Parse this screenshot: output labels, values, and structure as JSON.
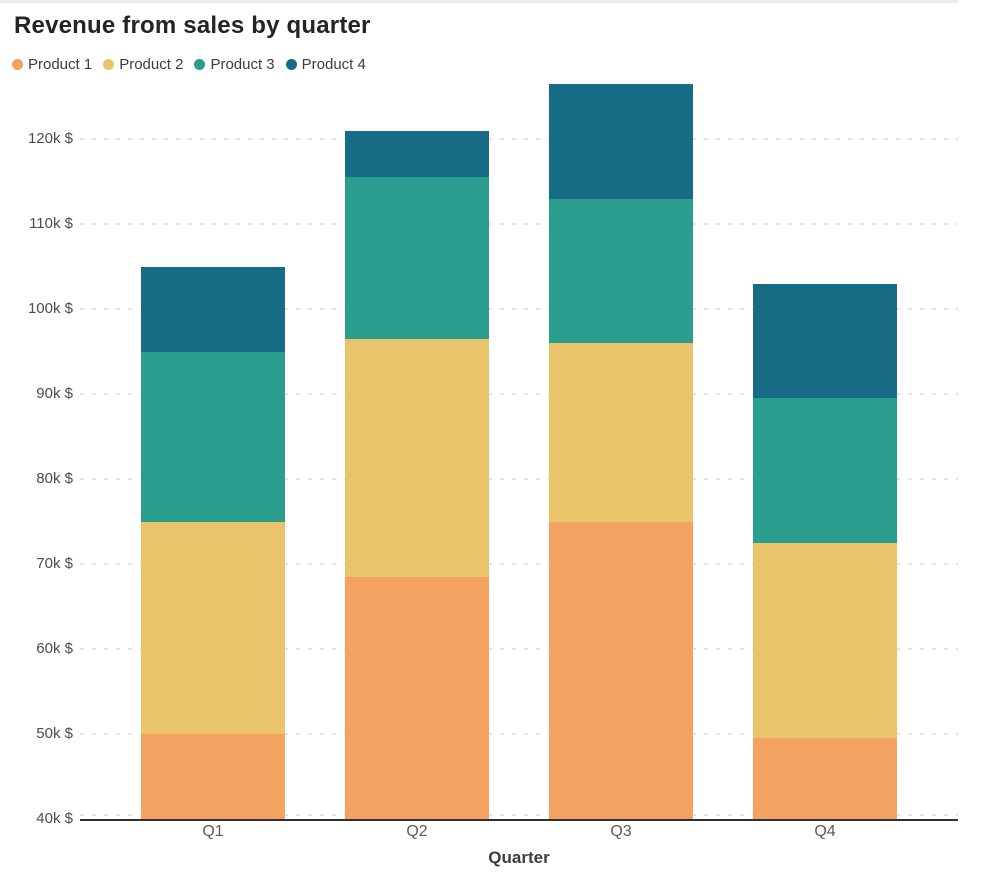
{
  "chart_data": {
    "type": "bar",
    "stacked": true,
    "title": "Revenue from sales by quarter",
    "xlabel": "Quarter",
    "ylabel": "",
    "categories": [
      "Q1",
      "Q2",
      "Q3",
      "Q4"
    ],
    "series": [
      {
        "name": "Product 1",
        "color": "#F4A261",
        "values": [
          50,
          68.5,
          75,
          49.5
        ]
      },
      {
        "name": "Product 2",
        "color": "#E9C46A",
        "values": [
          25,
          28,
          21,
          23
        ]
      },
      {
        "name": "Product 3",
        "color": "#2A9D8F",
        "values": [
          20,
          19,
          17,
          17
        ]
      },
      {
        "name": "Product 4",
        "color": "#186B85",
        "values": [
          10,
          5.5,
          13.5,
          13.5
        ]
      }
    ],
    "stack_totals": [
      105,
      121,
      126.5,
      103
    ],
    "ylim": [
      40,
      128.1
    ],
    "yticks": [
      40,
      50,
      60,
      70,
      80,
      90,
      100,
      110,
      120
    ],
    "ytick_labels": [
      "40k $",
      "50k $",
      "60k $",
      "70k $",
      "80k $",
      "90k $",
      "100k $",
      "110k $",
      "120k $"
    ],
    "unit": "k $",
    "legend_position": "top-left",
    "grid": "dashed horizontal",
    "axis_color": "#303030",
    "grid_color": "#e4e4e4"
  }
}
